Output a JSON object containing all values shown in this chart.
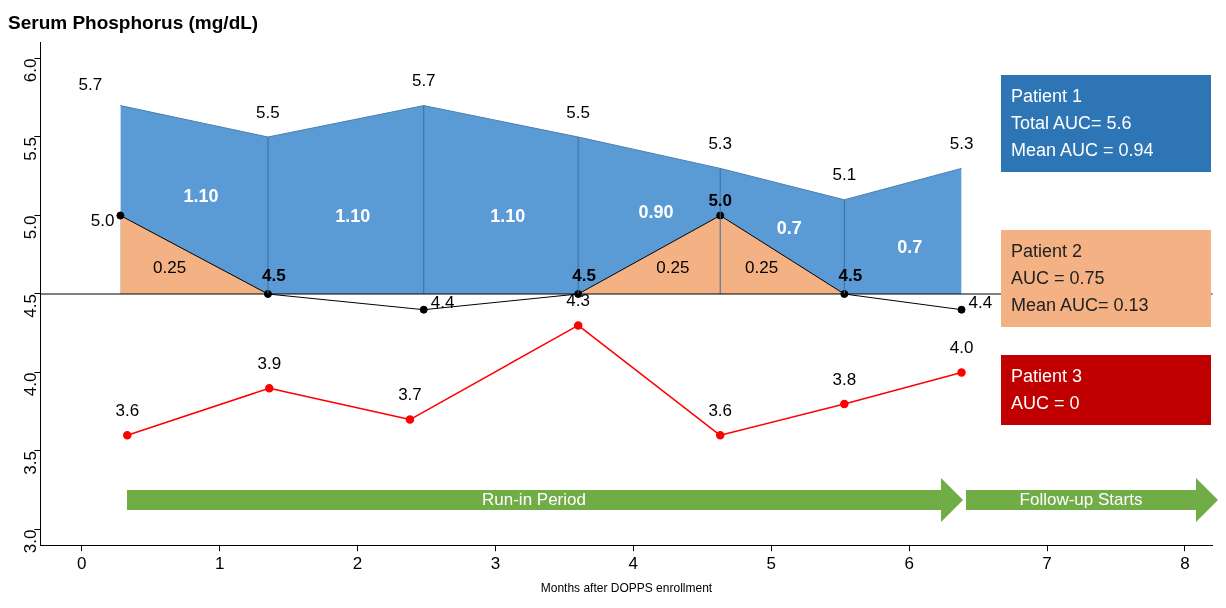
{
  "chart_data": {
    "type": "line",
    "title": "Serum Phosphorus (mg/dL)",
    "xlabel": "Months after DOPPS enrollment",
    "xlim": [
      -0.3,
      8.2
    ],
    "xticks": [
      0,
      1,
      2,
      3,
      4,
      5,
      6,
      7,
      8
    ],
    "ylim": [
      2.9,
      6.1
    ],
    "yticks": [
      {
        "value": 3,
        "label": "3.0"
      },
      {
        "value": 3.5,
        "label": "3.5"
      },
      {
        "value": 4,
        "label": "4.0"
      },
      {
        "value": 4.5,
        "label": "4.5"
      },
      {
        "value": 5,
        "label": "5.0"
      },
      {
        "value": 5.5,
        "label": "5.5"
      },
      {
        "value": 6,
        "label": "6.0"
      }
    ],
    "grid": false,
    "legend": "right",
    "series": [
      {
        "name": "Patient 1",
        "type": "area",
        "color": "#5b9bd5",
        "marker": "none",
        "x": [
          0.28,
          1.35,
          2.48,
          3.6,
          4.63,
          5.53,
          6.38
        ],
        "values": [
          5.7,
          5.5,
          5.7,
          5.5,
          5.3,
          5.1,
          5.3
        ],
        "value_labels": [
          "5.7",
          "5.5",
          "5.7",
          "5.5",
          "5.3",
          "5.1",
          "5.3"
        ]
      },
      {
        "name": "Patient 2",
        "type": "area",
        "color": "#f4b183",
        "marker": "circle",
        "x": [
          0.28,
          1.35,
          2.48,
          3.6,
          4.63,
          5.53,
          6.38
        ],
        "values": [
          5.0,
          4.5,
          4.4,
          4.5,
          5.0,
          4.5,
          4.4
        ],
        "value_labels": [
          "5.0",
          "4.5",
          "4.4",
          "4.5",
          "5.0",
          "4.5",
          "4.4"
        ]
      },
      {
        "name": "Patient 3",
        "color": "#ff0000",
        "marker": "circle",
        "x": [
          0.33,
          1.36,
          2.38,
          3.6,
          4.63,
          5.53,
          6.38
        ],
        "values": [
          3.6,
          3.9,
          3.7,
          4.3,
          3.6,
          3.8,
          4.0
        ],
        "value_labels": [
          "3.6",
          "3.9",
          "3.7",
          "4.3",
          "3.6",
          "3.8",
          "4.0"
        ]
      }
    ],
    "ref_lines": [
      {
        "axis": "y",
        "value": 4.5,
        "color": "#000000"
      }
    ],
    "annotations": [
      "Total AUC= 5.6\nMean AUC = 0.94",
      "AUC = 0.75\nMean AUC= 0.13",
      "AUC = 0",
      "Run-in Period",
      "Follow-up Starts",
      "1.10",
      "1.10",
      "1.10",
      "0.90",
      "0.7",
      "0.7",
      "0.25",
      "0.25",
      "0.25"
    ]
  }
}
